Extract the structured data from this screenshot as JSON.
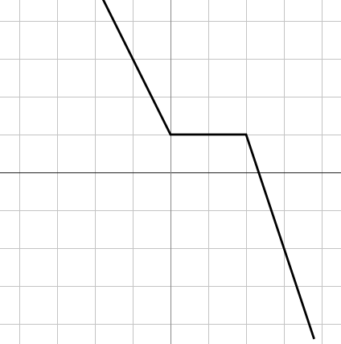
{
  "chart_data": {
    "type": "line",
    "title": "",
    "xlabel": "",
    "ylabel": "",
    "xlim": [
      -4.5,
      4.5
    ],
    "ylim": [
      -4.5,
      4.5
    ],
    "grid": true,
    "grid_step": 1,
    "axes_through_origin": true,
    "tick_labels": false,
    "series": [
      {
        "color": "#000000",
        "points": [
          {
            "x": -1.8,
            "y": 4.6
          },
          {
            "x": 0,
            "y": 1
          },
          {
            "x": 2,
            "y": 1
          },
          {
            "x": 3.8,
            "y": -4.4
          }
        ]
      }
    ]
  }
}
